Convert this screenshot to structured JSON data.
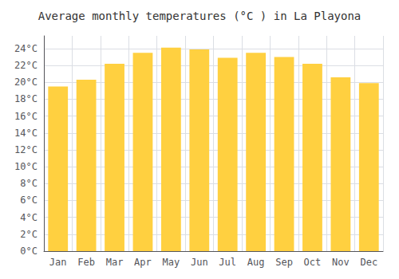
{
  "chart_data": {
    "type": "bar",
    "title": "Average monthly temperatures (°C ) in La Playona",
    "categories": [
      "Jan",
      "Feb",
      "Mar",
      "Apr",
      "May",
      "Jun",
      "Jul",
      "Aug",
      "Sep",
      "Oct",
      "Nov",
      "Dec"
    ],
    "values": [
      19.5,
      20.3,
      22.2,
      23.5,
      24.1,
      23.9,
      22.9,
      23.5,
      23.0,
      22.2,
      20.6,
      19.9
    ],
    "color": "#FFD040",
    "ylim": [
      0,
      25.5
    ],
    "yticks": [
      {
        "value": 0,
        "label": "0°C"
      },
      {
        "value": 2,
        "label": "2°C"
      },
      {
        "value": 4,
        "label": "4°C"
      },
      {
        "value": 6,
        "label": "6°C"
      },
      {
        "value": 8,
        "label": "8°C"
      },
      {
        "value": 10,
        "label": "10°C"
      },
      {
        "value": 12,
        "label": "12°C"
      },
      {
        "value": 14,
        "label": "14°C"
      },
      {
        "value": 16,
        "label": "16°C"
      },
      {
        "value": 18,
        "label": "18°C"
      },
      {
        "value": 20,
        "label": "20°C"
      },
      {
        "value": 22,
        "label": "22°C"
      },
      {
        "value": 24,
        "label": "24°C"
      }
    ],
    "grid": true
  }
}
